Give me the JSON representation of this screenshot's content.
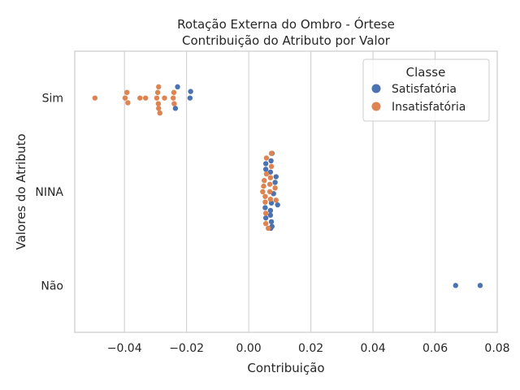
{
  "chart_data": {
    "type": "scatter",
    "title": [
      "Rotação Externa do Ombro - Órtese",
      "Contribuição do Atributo por Valor"
    ],
    "xlabel": "Contribuição",
    "ylabel": "Valores do Atributo",
    "xlim": [
      -0.056,
      0.08
    ],
    "xticks": [
      -0.04,
      -0.02,
      0.0,
      0.02,
      0.04,
      0.06,
      0.08
    ],
    "xtick_labels": [
      "−0.04",
      "−0.02",
      "0.00",
      "0.02",
      "0.04",
      "0.06",
      "0.08"
    ],
    "categories": [
      "Sim",
      "NINA",
      "Não"
    ],
    "grid": true,
    "legend": {
      "title": "Classe",
      "placement": "top-right"
    },
    "series": [
      {
        "name": "Satisfatória",
        "color": "#4c72b0",
        "points": [
          {
            "category": "Sim",
            "x": -0.0229,
            "offset": -0.12
          },
          {
            "category": "Sim",
            "x": -0.0187,
            "offset": -0.07
          },
          {
            "category": "Sim",
            "x": -0.0189,
            "offset": 0.0
          },
          {
            "category": "Sim",
            "x": -0.0236,
            "offset": 0.11
          },
          {
            "category": "NINA",
            "x": 0.0075,
            "offset": -0.41
          },
          {
            "category": "NINA",
            "x": 0.0072,
            "offset": -0.33
          },
          {
            "category": "NINA",
            "x": 0.0055,
            "offset": -0.3
          },
          {
            "category": "NINA",
            "x": 0.0055,
            "offset": -0.24
          },
          {
            "category": "NINA",
            "x": 0.007,
            "offset": -0.21
          },
          {
            "category": "NINA",
            "x": 0.0088,
            "offset": -0.16
          },
          {
            "category": "NINA",
            "x": 0.0085,
            "offset": -0.1
          },
          {
            "category": "NINA",
            "x": 0.008,
            "offset": 0.02
          },
          {
            "category": "NINA",
            "x": 0.0093,
            "offset": 0.14
          },
          {
            "category": "NINA",
            "x": 0.0073,
            "offset": 0.12
          },
          {
            "category": "NINA",
            "x": 0.0053,
            "offset": 0.17
          },
          {
            "category": "NINA",
            "x": 0.007,
            "offset": 0.2
          },
          {
            "category": "NINA",
            "x": 0.007,
            "offset": 0.25
          },
          {
            "category": "NINA",
            "x": 0.0055,
            "offset": 0.28
          },
          {
            "category": "NINA",
            "x": 0.0073,
            "offset": 0.32
          },
          {
            "category": "NINA",
            "x": 0.0075,
            "offset": 0.37
          },
          {
            "category": "NINA",
            "x": 0.0071,
            "offset": 0.39
          },
          {
            "category": "Não",
            "x": 0.0666,
            "offset": 0.0
          },
          {
            "category": "Não",
            "x": 0.0745,
            "offset": 0.0
          }
        ]
      },
      {
        "name": "Insatisfatória",
        "color": "#dd8452",
        "points": [
          {
            "category": "Sim",
            "x": -0.029,
            "offset": -0.12
          },
          {
            "category": "Sim",
            "x": -0.0392,
            "offset": -0.06
          },
          {
            "category": "Sim",
            "x": -0.0293,
            "offset": -0.06
          },
          {
            "category": "Sim",
            "x": -0.0241,
            "offset": -0.06
          },
          {
            "category": "Sim",
            "x": -0.0495,
            "offset": 0.0
          },
          {
            "category": "Sim",
            "x": -0.0398,
            "offset": 0.0
          },
          {
            "category": "Sim",
            "x": -0.035,
            "offset": 0.0
          },
          {
            "category": "Sim",
            "x": -0.0332,
            "offset": 0.0
          },
          {
            "category": "Sim",
            "x": -0.0296,
            "offset": 0.0
          },
          {
            "category": "Sim",
            "x": -0.0271,
            "offset": 0.0
          },
          {
            "category": "Sim",
            "x": -0.0243,
            "offset": 0.0
          },
          {
            "category": "Sim",
            "x": -0.0389,
            "offset": 0.05
          },
          {
            "category": "Sim",
            "x": -0.0291,
            "offset": 0.06
          },
          {
            "category": "Sim",
            "x": -0.024,
            "offset": 0.06
          },
          {
            "category": "Sim",
            "x": -0.029,
            "offset": 0.11
          },
          {
            "category": "Sim",
            "x": -0.0286,
            "offset": 0.16
          },
          {
            "category": "NINA",
            "x": 0.0073,
            "offset": -0.41
          },
          {
            "category": "NINA",
            "x": 0.0057,
            "offset": -0.36
          },
          {
            "category": "NINA",
            "x": 0.0073,
            "offset": -0.27
          },
          {
            "category": "NINA",
            "x": 0.0057,
            "offset": -0.19
          },
          {
            "category": "NINA",
            "x": 0.007,
            "offset": -0.15
          },
          {
            "category": "NINA",
            "x": 0.005,
            "offset": -0.12
          },
          {
            "category": "NINA",
            "x": 0.0068,
            "offset": -0.08
          },
          {
            "category": "NINA",
            "x": 0.0048,
            "offset": -0.06
          },
          {
            "category": "NINA",
            "x": 0.0085,
            "offset": -0.04
          },
          {
            "category": "NINA",
            "x": 0.0045,
            "offset": 0.0
          },
          {
            "category": "NINA",
            "x": 0.0068,
            "offset": 0.0
          },
          {
            "category": "NINA",
            "x": 0.0053,
            "offset": 0.05
          },
          {
            "category": "NINA",
            "x": 0.007,
            "offset": 0.08
          },
          {
            "category": "NINA",
            "x": 0.0088,
            "offset": 0.09
          },
          {
            "category": "NINA",
            "x": 0.0053,
            "offset": 0.11
          },
          {
            "category": "NINA",
            "x": 0.0055,
            "offset": 0.23
          },
          {
            "category": "NINA",
            "x": 0.0055,
            "offset": 0.34
          },
          {
            "category": "NINA",
            "x": 0.0063,
            "offset": 0.39
          }
        ]
      }
    ]
  }
}
